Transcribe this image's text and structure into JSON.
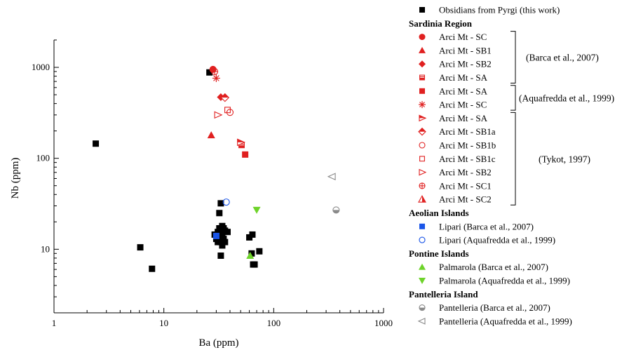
{
  "chart_data": {
    "type": "scatter",
    "title": "",
    "xlabel": "Ba (ppm)",
    "ylabel": "Nb (ppm)",
    "x_scale": "log",
    "y_scale": "log",
    "xlim": [
      1,
      1000
    ],
    "ylim": [
      2,
      2000
    ],
    "x_ticks": [
      "1",
      "10",
      "100",
      "1000"
    ],
    "y_ticks": [
      "10",
      "100",
      "1000"
    ],
    "grid": false,
    "legend_position": "right",
    "series": [
      {
        "id": "pyrgi",
        "name": "Obsidians  from Pyrgi (this work)",
        "marker": "square",
        "color": "#000000",
        "points": [
          [
            2.4,
            145
          ],
          [
            6.1,
            10.5
          ],
          [
            7.8,
            6.1
          ],
          [
            26,
            880
          ],
          [
            29,
            14.5
          ],
          [
            30,
            13
          ],
          [
            31,
            15.5
          ],
          [
            31,
            12
          ],
          [
            32,
            25
          ],
          [
            32,
            17
          ],
          [
            33,
            16
          ],
          [
            33,
            12
          ],
          [
            33,
            32
          ],
          [
            33,
            8.5
          ],
          [
            34,
            18
          ],
          [
            34,
            14
          ],
          [
            34,
            11
          ],
          [
            35,
            17
          ],
          [
            35,
            13
          ],
          [
            36,
            12
          ],
          [
            36,
            16
          ],
          [
            38,
            15.5
          ],
          [
            60,
            13.5
          ],
          [
            63,
            9
          ],
          [
            64,
            14.5
          ],
          [
            65,
            6.8
          ],
          [
            67,
            6.8
          ],
          [
            74,
            9.5
          ]
        ]
      },
      {
        "id": "sc_barca",
        "name": "Arci Mt - SC",
        "marker": "circle",
        "color": "#e02020",
        "points": [
          [
            28,
            950
          ]
        ]
      },
      {
        "id": "sb1_barca",
        "name": "Arci Mt - SB1",
        "marker": "triangle-up",
        "color": "#e02020",
        "points": [
          [
            27,
            180
          ]
        ]
      },
      {
        "id": "sb2_barca",
        "name": "Arci Mt - SB2",
        "marker": "diamond",
        "color": "#e02020",
        "points": [
          [
            33,
            470
          ]
        ]
      },
      {
        "id": "sa_barca",
        "name": "Arci Mt - SA",
        "marker": "square-half",
        "color": "#e02020",
        "points": [
          [
            51,
            140
          ]
        ]
      },
      {
        "id": "sa_aqua",
        "name": "Arci Mt - SA",
        "marker": "square",
        "color": "#e02020",
        "points": [
          [
            55,
            110
          ]
        ]
      },
      {
        "id": "sc_aqua",
        "name": "Arci Mt - SC",
        "marker": "asterisk",
        "color": "#e02020",
        "points": [
          [
            30,
            760
          ]
        ]
      },
      {
        "id": "sa_tykot",
        "name": "Arci Mt - SA",
        "marker": "triangle-right-half",
        "color": "#e02020",
        "points": [
          [
            50,
            150
          ]
        ]
      },
      {
        "id": "sb1a_tykot",
        "name": "Arci Mt - SB1a",
        "marker": "diamond-half",
        "color": "#e02020",
        "points": [
          [
            36,
            465
          ]
        ]
      },
      {
        "id": "sb1b_tykot",
        "name": "Arci Mt - SB1b",
        "marker": "circle-open",
        "color": "#e02020",
        "points": [
          [
            40,
            320
          ]
        ]
      },
      {
        "id": "sb1c_tykot",
        "name": "Arci Mt - SB1c",
        "marker": "square-open",
        "color": "#e02020",
        "points": [
          [
            38,
            340
          ]
        ]
      },
      {
        "id": "sb2_tykot",
        "name": "Arci Mt - SB2",
        "marker": "triangle-right-open",
        "color": "#e02020",
        "points": [
          [
            31,
            300
          ]
        ]
      },
      {
        "id": "sc1_tykot",
        "name": "Arci Mt - SC1",
        "marker": "circle-cross",
        "color": "#e02020",
        "points": [
          [
            29,
            900
          ]
        ]
      },
      {
        "id": "sc2_tykot",
        "name": "Arci Mt - SC2",
        "marker": "triangle-half",
        "color": "#e02020",
        "points": []
      },
      {
        "id": "lipari_barca",
        "name": "Lipari (Barca et al., 2007)",
        "marker": "square",
        "color": "#1a55e8",
        "points": [
          [
            30,
            14
          ]
        ]
      },
      {
        "id": "lipari_aqua",
        "name": "Lipari (Aquafredda et al., 1999)",
        "marker": "circle-open",
        "color": "#1a55e8",
        "points": [
          [
            37,
            33
          ]
        ]
      },
      {
        "id": "palmarola_barca",
        "name": "Palmarola (Barca et al., 2007)",
        "marker": "triangle-up",
        "color": "#6ed32a",
        "points": [
          [
            61,
            8.5
          ]
        ]
      },
      {
        "id": "palmarola_aqua",
        "name": "Palmarola (Aquafredda et al., 1999)",
        "marker": "triangle-down",
        "color": "#6ed32a",
        "points": [
          [
            70,
            27
          ]
        ]
      },
      {
        "id": "pantelleria_barca",
        "name": "Pantelleria (Barca et al., 2007)",
        "marker": "circle-half",
        "color": "#8a8a8a",
        "points": [
          [
            370,
            27
          ]
        ]
      },
      {
        "id": "pantelleria_aqua",
        "name": "Pantelleria (Aquafredda et al., 1999)",
        "marker": "triangle-left-open",
        "color": "#8a8a8a",
        "points": [
          [
            340,
            63
          ]
        ]
      }
    ]
  },
  "legend": {
    "entries": [
      {
        "type": "item",
        "series": "pyrgi"
      },
      {
        "type": "heading",
        "label": "Sardinia Region"
      },
      {
        "type": "item",
        "series": "sc_barca"
      },
      {
        "type": "item",
        "series": "sb1_barca"
      },
      {
        "type": "item",
        "series": "sb2_barca"
      },
      {
        "type": "item",
        "series": "sa_barca"
      },
      {
        "type": "item",
        "series": "sa_aqua"
      },
      {
        "type": "item",
        "series": "sc_aqua"
      },
      {
        "type": "item",
        "series": "sa_tykot"
      },
      {
        "type": "item",
        "series": "sb1a_tykot"
      },
      {
        "type": "item",
        "series": "sb1b_tykot"
      },
      {
        "type": "item",
        "series": "sb1c_tykot"
      },
      {
        "type": "item",
        "series": "sb2_tykot"
      },
      {
        "type": "item",
        "series": "sc1_tykot"
      },
      {
        "type": "item",
        "series": "sc2_tykot"
      },
      {
        "type": "heading",
        "label": "Aeolian Islands"
      },
      {
        "type": "item",
        "series": "lipari_barca"
      },
      {
        "type": "item",
        "series": "lipari_aqua"
      },
      {
        "type": "heading",
        "label": "Pontine Islands"
      },
      {
        "type": "item",
        "series": "palmarola_barca"
      },
      {
        "type": "item",
        "series": "palmarola_aqua"
      },
      {
        "type": "heading",
        "label": "Pantelleria Island"
      },
      {
        "type": "item",
        "series": "pantelleria_barca"
      },
      {
        "type": "item",
        "series": "pantelleria_aqua"
      }
    ],
    "references": [
      {
        "label": "(Barca et al., 2007)",
        "from": 2,
        "to": 5
      },
      {
        "label": "(Aquafredda et al., 1999)",
        "from": 6,
        "to": 7
      },
      {
        "label": "(Tykot, 1997)",
        "from": 8,
        "to": 14
      }
    ]
  }
}
